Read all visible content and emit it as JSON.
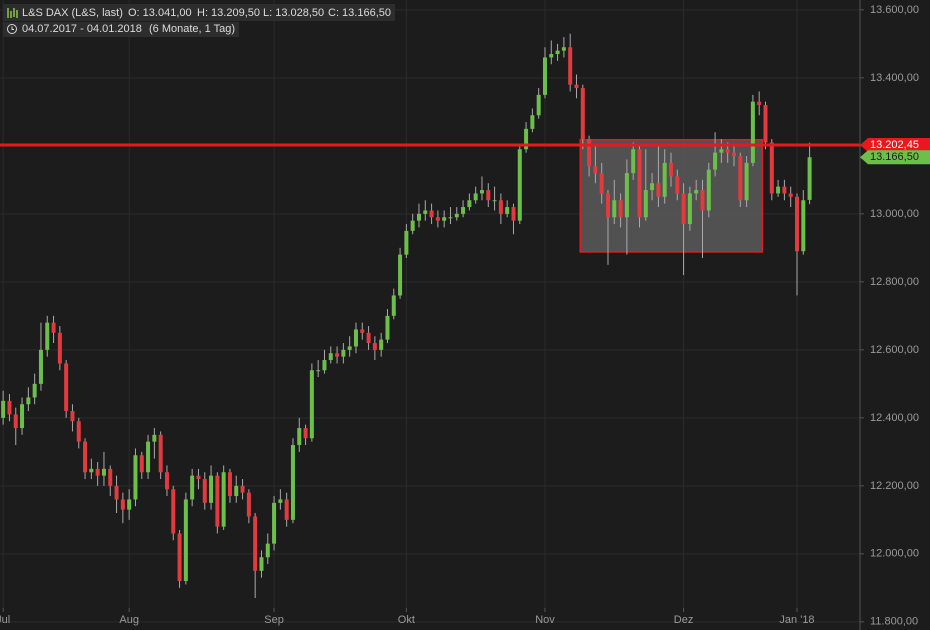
{
  "chart_data": {
    "type": "candlestick",
    "legend": {
      "name": "L&S DAX (L&S, last)",
      "open": "O: 13.041,00",
      "high": "H: 13.209,50",
      "low": "L: 13.028,50",
      "close": "C: 13.166,50"
    },
    "range": {
      "dates": "04.07.2017 - 04.01.2018",
      "span": "(6 Monate, 1 Tag)"
    },
    "up_color": "#6cc04a",
    "down_color": "#e23a3f",
    "open": [
      12400,
      12450,
      12410,
      12370,
      12440,
      12460,
      12500,
      12600,
      12680,
      12650,
      12560,
      12420,
      12390,
      12330,
      12240,
      12250,
      12230,
      12250,
      12200,
      12160,
      12130,
      12160,
      12290,
      12240,
      12330,
      12350,
      12240,
      12190,
      12060,
      11920,
      12160,
      12230,
      12220,
      12150,
      12230,
      12080,
      12240,
      12170,
      12200,
      12180,
      12110,
      11950,
      11990,
      12030,
      12150,
      12160,
      12100,
      12320,
      12370,
      12340,
      12540,
      12540,
      12570,
      12590,
      12580,
      12600,
      12610,
      12660,
      12650,
      12620,
      12600,
      12630,
      12700,
      12760,
      12880,
      12950,
      12980,
      13000,
      13010,
      12990,
      12980,
      12990,
      12990,
      13000,
      13020,
      13040,
      13060,
      13070,
      13040,
      13040,
      13000,
      13020,
      12980,
      13190,
      13250,
      13290,
      13350,
      13460,
      13470,
      13480,
      13490,
      13380,
      13370,
      13220,
      13140,
      13120,
      13060,
      12990,
      13040,
      12990,
      13120,
      13190,
      12990,
      13070,
      13090,
      13050,
      13150,
      13110,
      13060,
      12970,
      13060,
      13070,
      13010,
      13130,
      13180,
      13190,
      13180,
      13170,
      13040,
      13150,
      13330,
      13320,
      13210,
      13060,
      13080,
      13060,
      13050,
      12890,
      13041
    ],
    "high": [
      12480,
      12470,
      12430,
      12460,
      12490,
      12530,
      12680,
      12700,
      12700,
      12670,
      12570,
      12440,
      12400,
      12340,
      12280,
      12270,
      12300,
      12260,
      12230,
      12180,
      12190,
      12310,
      12300,
      12350,
      12370,
      12360,
      12260,
      12200,
      12070,
      12180,
      12250,
      12250,
      12240,
      12260,
      12240,
      12260,
      12250,
      12230,
      12220,
      12190,
      12120,
      12010,
      12060,
      12170,
      12190,
      12180,
      12340,
      12400,
      12380,
      12560,
      12570,
      12600,
      12610,
      12610,
      12620,
      12640,
      12680,
      12680,
      12670,
      12640,
      12650,
      12720,
      12780,
      12900,
      12970,
      13000,
      13030,
      13040,
      13030,
      13010,
      13010,
      13020,
      13020,
      13040,
      13060,
      13080,
      13110,
      13090,
      13080,
      13060,
      13040,
      13030,
      13200,
      13270,
      13310,
      13370,
      13490,
      13510,
      13500,
      13520,
      13530,
      13410,
      13380,
      13230,
      13200,
      13150,
      13070,
      13100,
      13060,
      13160,
      13210,
      13200,
      13190,
      13120,
      13200,
      13190,
      13180,
      13130,
      13090,
      13080,
      13100,
      13100,
      13150,
      13240,
      13220,
      13210,
      13200,
      13180,
      13170,
      13350,
      13360,
      13330,
      13220,
      13100,
      13100,
      13080,
      13060,
      13070,
      13209.5
    ],
    "low": [
      12380,
      12390,
      12320,
      12350,
      12420,
      12440,
      12480,
      12580,
      12620,
      12540,
      12400,
      12360,
      12310,
      12220,
      12220,
      12200,
      12200,
      12170,
      12120,
      12090,
      12100,
      12140,
      12220,
      12220,
      12280,
      12220,
      12170,
      12040,
      11900,
      11910,
      12140,
      12190,
      12130,
      12130,
      12060,
      12070,
      12150,
      12150,
      12160,
      12090,
      11870,
      11930,
      11970,
      12010,
      12130,
      12080,
      12090,
      12300,
      12320,
      12330,
      12520,
      12530,
      12560,
      12560,
      12560,
      12580,
      12590,
      12630,
      12600,
      12570,
      12580,
      12620,
      12690,
      12750,
      12870,
      12940,
      12960,
      12980,
      12970,
      12960,
      12960,
      12970,
      12980,
      12990,
      13010,
      13030,
      13040,
      13020,
      13010,
      12970,
      12990,
      12940,
      12970,
      13180,
      13240,
      13280,
      13340,
      13440,
      13450,
      13460,
      13360,
      13340,
      13190,
      13110,
      13090,
      13030,
      12850,
      12970,
      12960,
      12880,
      13100,
      12960,
      12980,
      13040,
      13020,
      13030,
      13080,
      13040,
      12820,
      12950,
      13040,
      12870,
      12990,
      13110,
      13150,
      13150,
      13140,
      13020,
      13020,
      13140,
      13290,
      13190,
      13040,
      13050,
      13040,
      13020,
      12760,
      12880,
      13028.5
    ],
    "close": [
      12450,
      12410,
      12370,
      12440,
      12460,
      12500,
      12600,
      12680,
      12650,
      12560,
      12420,
      12390,
      12330,
      12240,
      12250,
      12230,
      12250,
      12200,
      12160,
      12130,
      12160,
      12290,
      12240,
      12330,
      12350,
      12240,
      12190,
      12060,
      11920,
      12160,
      12230,
      12220,
      12150,
      12230,
      12080,
      12240,
      12170,
      12200,
      12180,
      12110,
      11950,
      11990,
      12030,
      12150,
      12160,
      12100,
      12320,
      12370,
      12340,
      12540,
      12540,
      12570,
      12590,
      12580,
      12600,
      12610,
      12660,
      12650,
      12620,
      12600,
      12630,
      12700,
      12760,
      12880,
      12950,
      12980,
      13000,
      13010,
      12990,
      12980,
      12990,
      12990,
      13000,
      13020,
      13040,
      13060,
      13070,
      13040,
      13040,
      13000,
      13020,
      12980,
      13190,
      13250,
      13290,
      13350,
      13460,
      13470,
      13480,
      13490,
      13380,
      13370,
      13220,
      13140,
      13120,
      13060,
      12990,
      13040,
      12990,
      13120,
      13190,
      12990,
      13070,
      13090,
      13050,
      13150,
      13110,
      13060,
      12970,
      13060,
      13070,
      13010,
      13130,
      13180,
      13190,
      13180,
      13170,
      13040,
      13150,
      13330,
      13320,
      13210,
      13060,
      13080,
      13060,
      13050,
      12890,
      13040,
      13166.5
    ],
    "last_label": "13.166,50",
    "hline": {
      "value": 13202.45,
      "label": "13.202,45",
      "color": "#e8181e"
    },
    "box": {
      "x": [
        91.6,
        120.5
      ],
      "y": [
        12888,
        13218
      ]
    },
    "xlim": [
      -0.5,
      136
    ],
    "xticks": [
      {
        "value": 0,
        "label": "Jul"
      },
      {
        "value": 20,
        "label": "Aug"
      },
      {
        "value": 43,
        "label": "Sep"
      },
      {
        "value": 64,
        "label": "Okt"
      },
      {
        "value": 86,
        "label": "Nov"
      },
      {
        "value": 108,
        "label": "Dez"
      },
      {
        "value": 126,
        "label": "Jan '18"
      }
    ],
    "ylim": [
      11776,
      13629
    ],
    "yticks": [
      {
        "value": 11800,
        "label": "11.800,00"
      },
      {
        "value": 12000,
        "label": "12.000,00"
      },
      {
        "value": 12200,
        "label": "12.200,00"
      },
      {
        "value": 12400,
        "label": "12.400,00"
      },
      {
        "value": 12600,
        "label": "12.600,00"
      },
      {
        "value": 12800,
        "label": "12.800,00"
      },
      {
        "value": 13000,
        "label": "13.000,00"
      },
      {
        "value": 13200,
        "label": "13.200,00"
      },
      {
        "value": 13400,
        "label": "13.400,00"
      },
      {
        "value": 13600,
        "label": "13.600,00"
      }
    ],
    "grid": true
  }
}
